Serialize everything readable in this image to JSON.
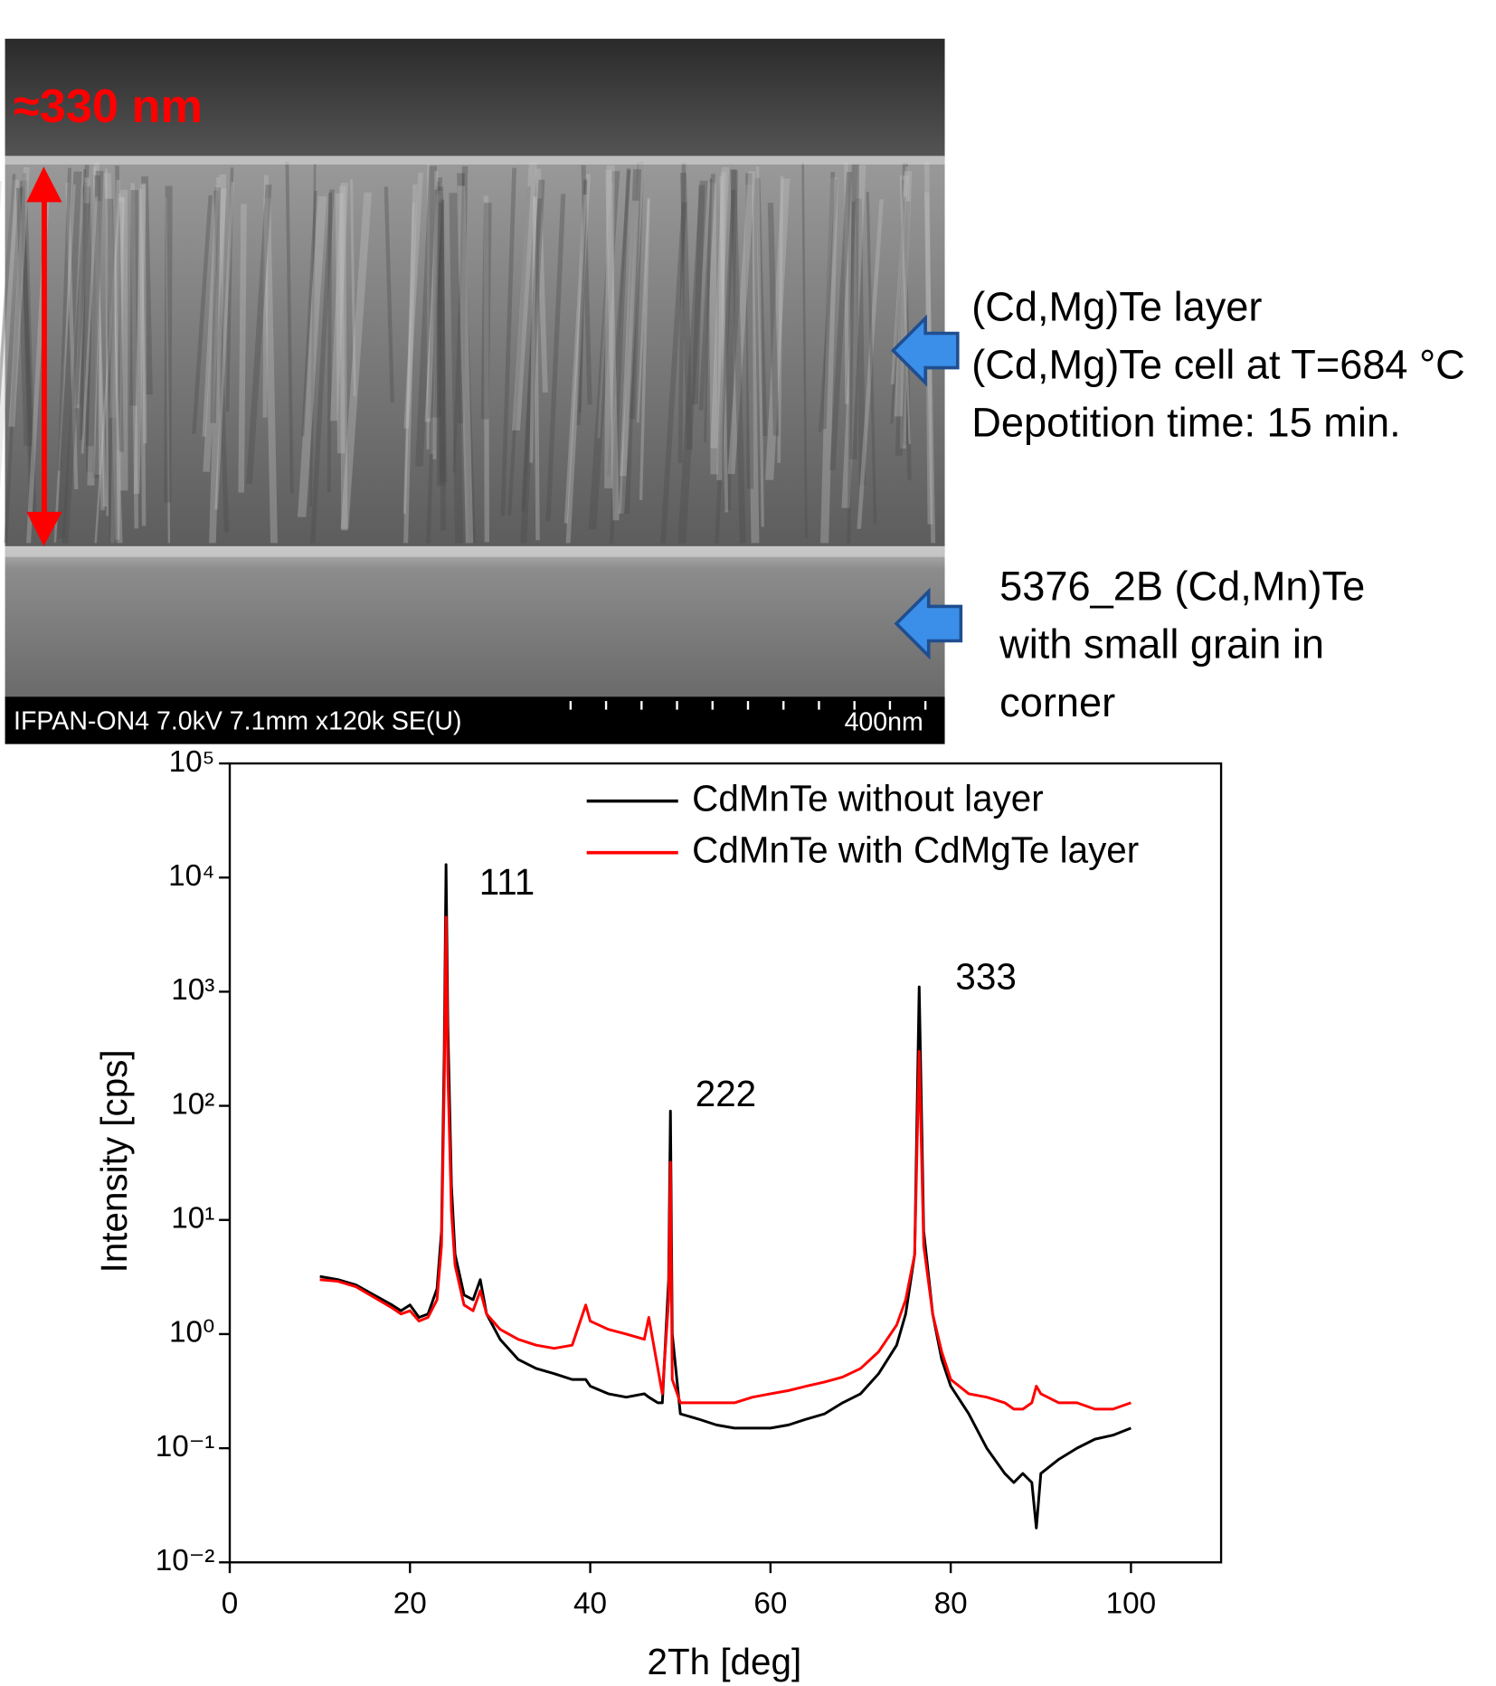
{
  "image_annotations": {
    "thickness": "≈330 nm",
    "info_bar": "IFPAN-ON4 7.0kV 7.1mm x120k SE(U)",
    "scale_bar": "400nm",
    "layer_note": [
      "(Cd,Mg)Te layer",
      "(Cd,Mg)Te cell at T=684 °C",
      "Depotition time: 15 min."
    ],
    "substrate_note": [
      "5376_2B (Cd,Mn)Te",
      "with small grain in",
      "corner"
    ]
  },
  "chart_data": {
    "type": "line",
    "xlabel": "2Th [deg]",
    "ylabel": "Intensity [cps]",
    "log_y": true,
    "xlim": [
      0,
      110
    ],
    "xticks": [
      0,
      20,
      40,
      60,
      80,
      100
    ],
    "ylim": [
      0.01,
      100000
    ],
    "yticks": [
      {
        "value": 0.01,
        "label": "10⁻²"
      },
      {
        "value": 0.1,
        "label": "10⁻¹"
      },
      {
        "value": 1,
        "label": "10⁰"
      },
      {
        "value": 10,
        "label": "10¹"
      },
      {
        "value": 100,
        "label": "10²"
      },
      {
        "value": 1000,
        "label": "10³"
      },
      {
        "value": 10000,
        "label": "10⁴"
      },
      {
        "value": 100000,
        "label": "10⁵"
      }
    ],
    "legend": "upper right",
    "annotations": [
      "111",
      "222",
      "333"
    ],
    "x": [
      10,
      12,
      14,
      16,
      18,
      19,
      20,
      21,
      22,
      23,
      23.5,
      23.8,
      24,
      24.2,
      24.6,
      25,
      26,
      27,
      27.8,
      28.5,
      30,
      32,
      34,
      36,
      38,
      39.5,
      40,
      42,
      44,
      46,
      46.5,
      47.5,
      48,
      48.7,
      48.9,
      49.1,
      50,
      52,
      54,
      56,
      58,
      60,
      62,
      64,
      66,
      68,
      70,
      72,
      74,
      75,
      76,
      76.5,
      77,
      78,
      79,
      80,
      82,
      84,
      86,
      87,
      88,
      89,
      89.5,
      90,
      92,
      94,
      96,
      98,
      100
    ],
    "series": [
      {
        "name": "CdMnTe without layer",
        "color": "#000000",
        "values": [
          3.2,
          3.0,
          2.7,
          2.2,
          1.8,
          1.6,
          1.8,
          1.4,
          1.5,
          2.5,
          8,
          300,
          13000,
          500,
          20,
          5,
          2.2,
          2,
          3,
          1.5,
          0.9,
          0.6,
          0.5,
          0.45,
          0.4,
          0.4,
          0.35,
          0.3,
          0.28,
          0.3,
          0.28,
          0.25,
          0.25,
          3,
          90,
          1,
          0.2,
          0.18,
          0.16,
          0.15,
          0.15,
          0.15,
          0.16,
          0.18,
          0.2,
          0.25,
          0.3,
          0.45,
          0.8,
          1.5,
          5,
          1100,
          8,
          1.5,
          0.6,
          0.35,
          0.2,
          0.1,
          0.06,
          0.05,
          0.06,
          0.05,
          0.02,
          0.06,
          0.08,
          0.1,
          0.12,
          0.13,
          0.15
        ]
      },
      {
        "name": "CdMnTe with CdMgTe layer",
        "color": "#ff0000",
        "values": [
          3.0,
          2.9,
          2.6,
          2.1,
          1.7,
          1.5,
          1.6,
          1.3,
          1.4,
          2.0,
          6,
          150,
          4500,
          200,
          12,
          4,
          1.8,
          1.6,
          2.4,
          1.5,
          1.1,
          0.9,
          0.8,
          0.75,
          0.8,
          1.8,
          1.3,
          1.1,
          1.0,
          0.9,
          1.4,
          0.5,
          0.3,
          2,
          32,
          0.4,
          0.25,
          0.25,
          0.25,
          0.25,
          0.28,
          0.3,
          0.32,
          0.35,
          0.38,
          0.42,
          0.5,
          0.7,
          1.2,
          2,
          5,
          300,
          6,
          1.5,
          0.7,
          0.4,
          0.3,
          0.28,
          0.25,
          0.22,
          0.22,
          0.25,
          0.35,
          0.3,
          0.25,
          0.25,
          0.22,
          0.22,
          0.25
        ]
      }
    ]
  }
}
